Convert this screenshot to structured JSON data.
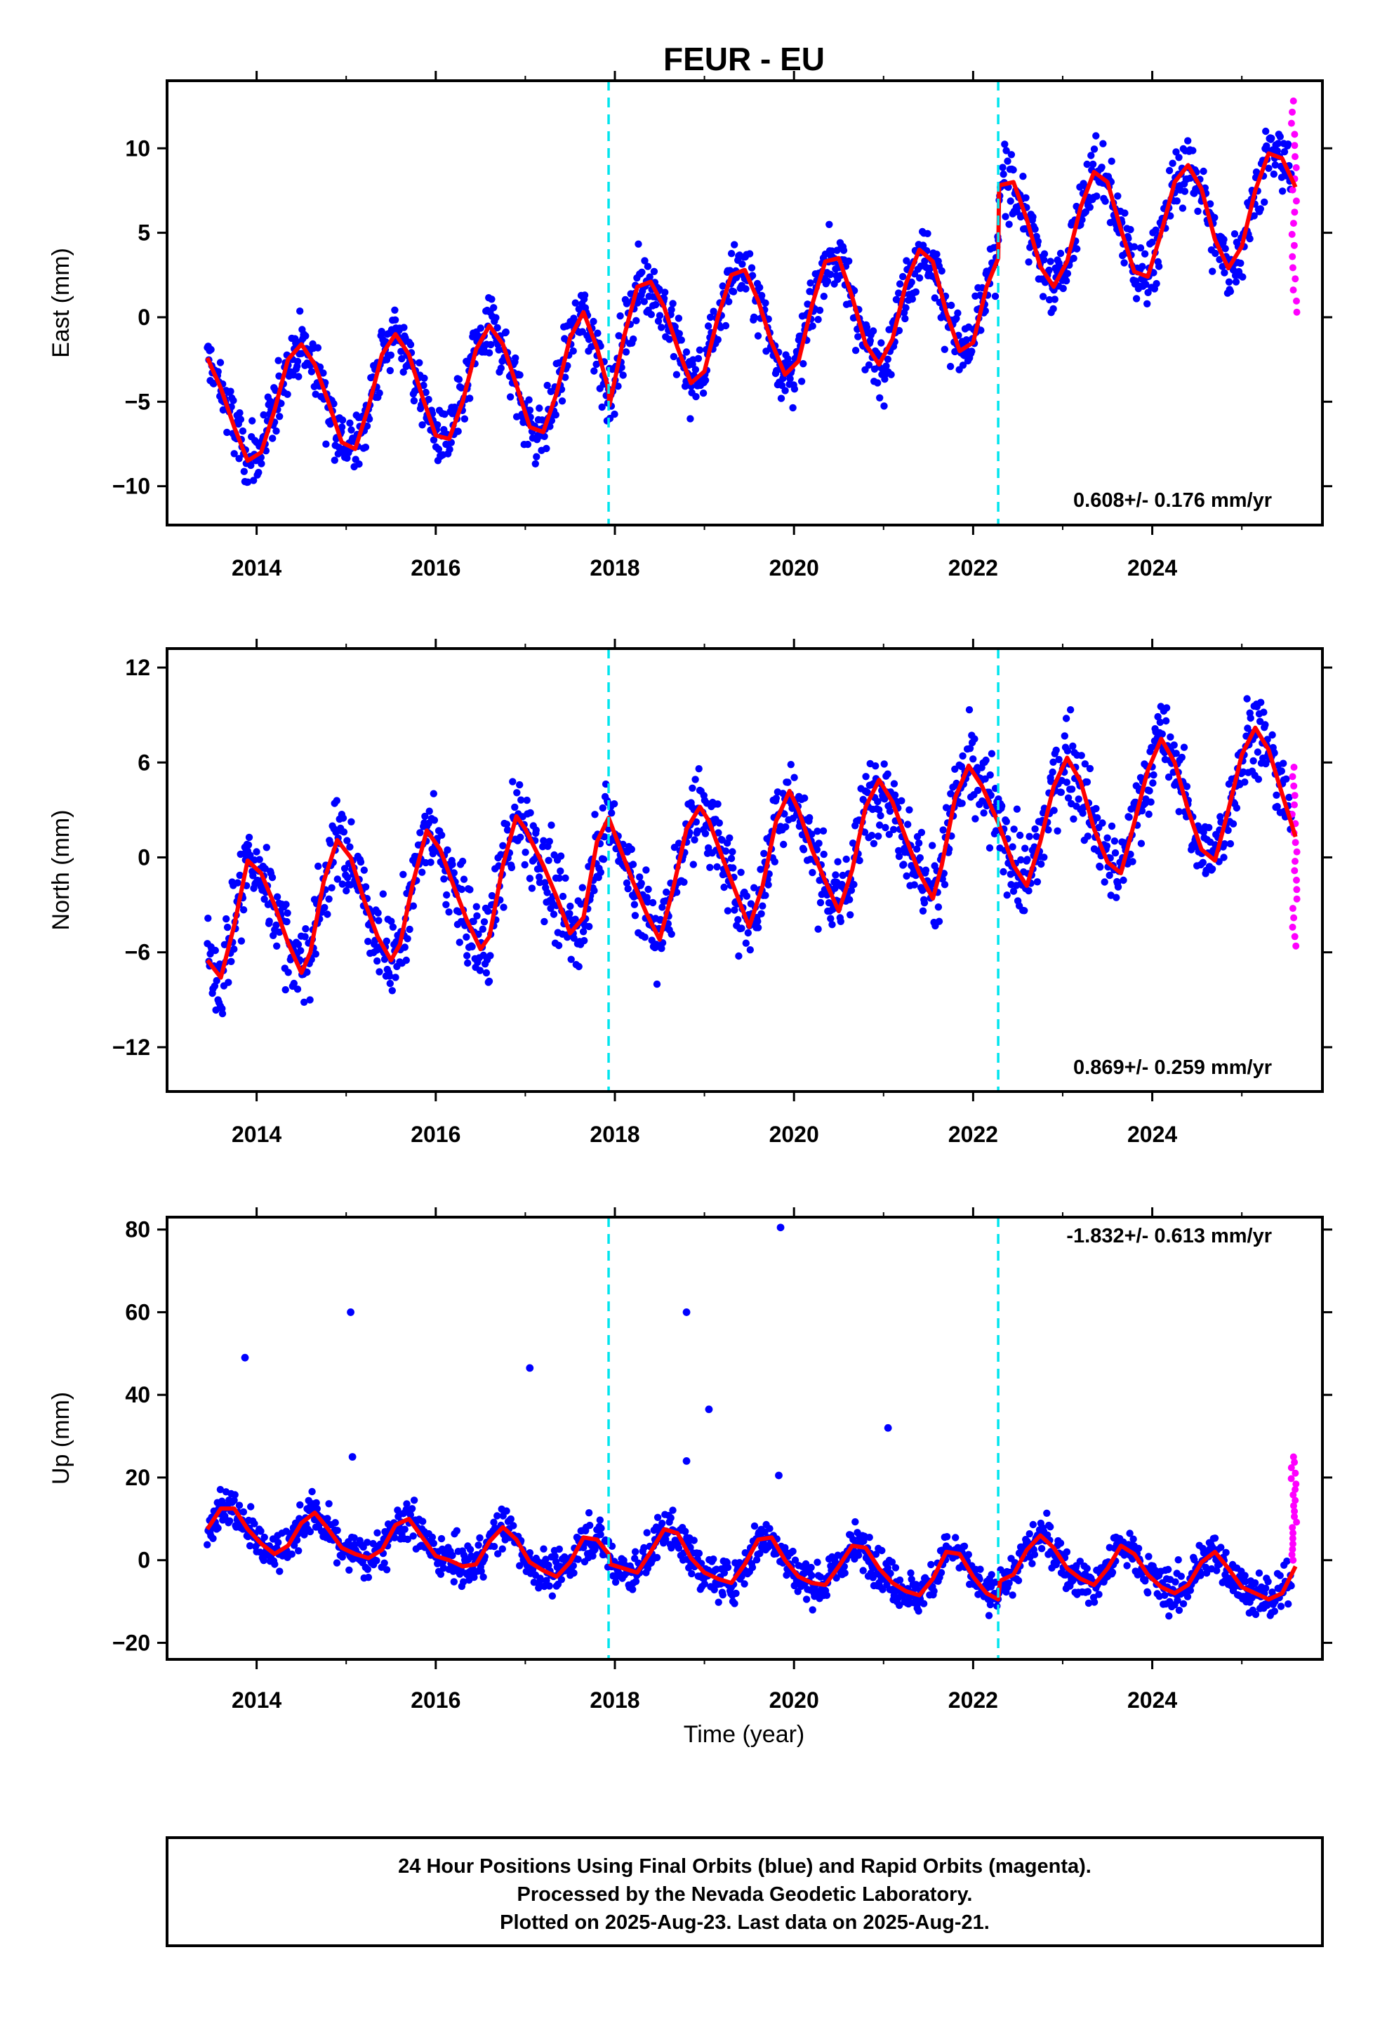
{
  "figure": {
    "title": "FEUR - EU",
    "xlabel": "Time (year)",
    "footer": [
      "24 Hour Positions Using Final Orbits (blue) and Rapid Orbits (magenta).",
      "Processed by the Nevada Geodetic Laboratory.",
      "Plotted on 2025-Aug-23. Last data on 2025-Aug-21."
    ],
    "colors": {
      "final_orbits": "#0000ff",
      "rapid_orbits": "#ff00ff",
      "model_fit": "#ff0000",
      "equipment_change": "#00e5ee"
    }
  },
  "chart_data": [
    {
      "type": "scatter",
      "panel": "east",
      "ylabel": "East (mm)",
      "xlim": [
        2013.0,
        2025.9
      ],
      "ylim": [
        -12.3,
        14
      ],
      "xticks": [
        "2014",
        "2016",
        "2018",
        "2020",
        "2022",
        "2024"
      ],
      "yticks": [
        "10",
        "5",
        "0",
        "−5",
        "−10"
      ],
      "ytick_values": [
        10,
        5,
        0,
        -5,
        -10
      ],
      "vertical_lines_x": [
        2017.93,
        2022.28
      ],
      "rate_label": "0.608+/- 0.176 mm/yr",
      "series": [
        {
          "name": "Final Orbits",
          "color": "#0000ff",
          "description_points": "daily positions from 2013.45 to 2025.55, scatter about the model"
        },
        {
          "name": "Rapid Orbits",
          "color": "#ff00ff",
          "x_range": [
            2025.55,
            2025.62
          ],
          "y_range": [
            0.3,
            12.8
          ]
        },
        {
          "name": "Model fit",
          "color": "#ff0000",
          "x": [
            2013.45,
            2013.6,
            2013.75,
            2013.9,
            2014.05,
            2014.2,
            2014.35,
            2014.5,
            2014.65,
            2014.8,
            2014.95,
            2015.1,
            2015.25,
            2015.4,
            2015.55,
            2015.7,
            2015.85,
            2016.0,
            2016.15,
            2016.3,
            2016.45,
            2016.6,
            2016.75,
            2016.9,
            2017.05,
            2017.2,
            2017.35,
            2017.5,
            2017.65,
            2017.8,
            2017.93,
            2017.94,
            2018.1,
            2018.25,
            2018.4,
            2018.55,
            2018.7,
            2018.85,
            2019.0,
            2019.15,
            2019.3,
            2019.45,
            2019.6,
            2019.75,
            2019.9,
            2020.05,
            2020.2,
            2020.35,
            2020.5,
            2020.65,
            2020.8,
            2020.95,
            2021.1,
            2021.25,
            2021.4,
            2021.55,
            2021.7,
            2021.85,
            2022.0,
            2022.15,
            2022.28,
            2022.29,
            2022.45,
            2022.6,
            2022.75,
            2022.9,
            2023.05,
            2023.2,
            2023.35,
            2023.5,
            2023.65,
            2023.8,
            2023.95,
            2024.1,
            2024.25,
            2024.4,
            2024.55,
            2024.7,
            2024.85,
            2025.0,
            2025.15,
            2025.3,
            2025.45,
            2025.6
          ],
          "y": [
            -2.4,
            -4.2,
            -6.5,
            -8.5,
            -8.0,
            -5.5,
            -2.5,
            -1.6,
            -2.8,
            -5.0,
            -7.4,
            -7.8,
            -5.3,
            -2.2,
            -1.0,
            -2.2,
            -4.7,
            -7.0,
            -7.2,
            -5.0,
            -1.9,
            -0.5,
            -1.6,
            -4.0,
            -6.5,
            -6.8,
            -4.5,
            -1.2,
            0.3,
            -1.8,
            -4.3,
            -5.2,
            -1.2,
            1.8,
            2.1,
            0.6,
            -1.8,
            -3.9,
            -3.2,
            0.0,
            2.5,
            2.8,
            1.0,
            -1.5,
            -3.4,
            -2.6,
            0.7,
            3.3,
            3.5,
            1.2,
            -1.6,
            -2.8,
            -1.3,
            2.0,
            4.0,
            3.3,
            0.3,
            -2.0,
            -1.5,
            1.8,
            3.5,
            7.8,
            8.0,
            5.8,
            3.0,
            1.8,
            3.3,
            6.5,
            8.6,
            8.0,
            5.2,
            2.7,
            2.4,
            5.0,
            8.0,
            9.0,
            7.6,
            4.6,
            2.9,
            4.2,
            7.5,
            9.7,
            9.4,
            7.7
          ]
        }
      ]
    },
    {
      "type": "scatter",
      "panel": "north",
      "ylabel": "North (mm)",
      "xlim": [
        2013.0,
        2025.9
      ],
      "ylim": [
        -14.8,
        13.2
      ],
      "xticks": [
        "2014",
        "2016",
        "2018",
        "2020",
        "2022",
        "2024"
      ],
      "yticks": [
        "12",
        "6",
        "0",
        "−6",
        "−12"
      ],
      "ytick_values": [
        12,
        6,
        0,
        -6,
        -12
      ],
      "vertical_lines_x": [
        2017.93,
        2022.28
      ],
      "rate_label": "0.869+/- 0.259 mm/yr",
      "series": [
        {
          "name": "Final Orbits",
          "color": "#0000ff",
          "description_points": "daily positions from 2013.45 to 2025.55, scatter about the model"
        },
        {
          "name": "Rapid Orbits",
          "color": "#ff00ff",
          "x_range": [
            2025.55,
            2025.62
          ],
          "y_range": [
            -5.6,
            5.7
          ]
        },
        {
          "name": "Model fit",
          "color": "#ff0000",
          "x": [
            2013.45,
            2013.6,
            2013.75,
            2013.9,
            2014.05,
            2014.2,
            2014.35,
            2014.5,
            2014.6,
            2014.75,
            2014.9,
            2015.05,
            2015.2,
            2015.35,
            2015.5,
            2015.6,
            2015.75,
            2015.9,
            2016.05,
            2016.2,
            2016.35,
            2016.5,
            2016.6,
            2016.75,
            2016.9,
            2017.0,
            2017.2,
            2017.35,
            2017.5,
            2017.65,
            2017.8,
            2017.93,
            2018.05,
            2018.2,
            2018.35,
            2018.5,
            2018.65,
            2018.8,
            2018.95,
            2019.05,
            2019.2,
            2019.35,
            2019.5,
            2019.65,
            2019.8,
            2019.95,
            2020.05,
            2020.2,
            2020.35,
            2020.5,
            2020.65,
            2020.8,
            2020.95,
            2021.1,
            2021.25,
            2021.4,
            2021.55,
            2021.65,
            2021.8,
            2021.95,
            2022.1,
            2022.28,
            2022.45,
            2022.6,
            2022.75,
            2022.9,
            2023.05,
            2023.2,
            2023.35,
            2023.5,
            2023.65,
            2023.8,
            2023.95,
            2024.1,
            2024.25,
            2024.4,
            2024.55,
            2024.7,
            2024.85,
            2025.0,
            2025.15,
            2025.3,
            2025.45,
            2025.6
          ],
          "y": [
            -6.5,
            -7.6,
            -4.3,
            -0.2,
            -1.0,
            -3.0,
            -5.4,
            -7.3,
            -6.0,
            -1.5,
            1.1,
            0.0,
            -2.7,
            -5.0,
            -6.5,
            -5.5,
            -1.5,
            1.7,
            0.5,
            -1.8,
            -4.0,
            -5.8,
            -5.0,
            -0.5,
            2.6,
            1.8,
            -0.5,
            -2.5,
            -4.8,
            -3.8,
            1.0,
            2.5,
            0.7,
            -1.5,
            -3.5,
            -5.2,
            -2.0,
            1.8,
            3.2,
            2.3,
            0.0,
            -2.2,
            -4.4,
            -1.8,
            2.3,
            4.2,
            3.0,
            0.5,
            -1.5,
            -3.4,
            -0.8,
            3.2,
            4.9,
            3.5,
            1.2,
            -1.0,
            -2.6,
            -0.5,
            3.8,
            5.8,
            4.5,
            2.2,
            -0.5,
            -1.8,
            1.0,
            4.5,
            6.3,
            4.8,
            1.8,
            -0.3,
            -1.0,
            2.2,
            5.5,
            7.5,
            6.0,
            3.0,
            0.5,
            -0.2,
            3.0,
            6.5,
            8.2,
            6.8,
            4.0,
            1.3
          ]
        }
      ]
    },
    {
      "type": "scatter",
      "panel": "up",
      "ylabel": "Up (mm)",
      "xlim": [
        2013.0,
        2025.9
      ],
      "ylim": [
        -24,
        83
      ],
      "xticks": [
        "2014",
        "2016",
        "2018",
        "2020",
        "2022",
        "2024"
      ],
      "yticks": [
        "80",
        "60",
        "40",
        "20",
        "0",
        "−20"
      ],
      "ytick_values": [
        80,
        60,
        40,
        20,
        0,
        -20
      ],
      "vertical_lines_x": [
        2017.93,
        2022.28
      ],
      "rate_label": "-1.832+/- 0.613 mm/yr",
      "outliers": [
        {
          "x": 2013.87,
          "y": 49
        },
        {
          "x": 2015.05,
          "y": 60
        },
        {
          "x": 2015.07,
          "y": 25
        },
        {
          "x": 2017.05,
          "y": 46.5
        },
        {
          "x": 2018.8,
          "y": 60
        },
        {
          "x": 2018.8,
          "y": 24
        },
        {
          "x": 2019.05,
          "y": 36.5
        },
        {
          "x": 2019.85,
          "y": 80.5
        },
        {
          "x": 2019.83,
          "y": 20.5
        },
        {
          "x": 2021.05,
          "y": 32
        }
      ],
      "series": [
        {
          "name": "Final Orbits",
          "color": "#0000ff",
          "description_points": "daily positions from 2013.45 to 2025.55, scatter about the model"
        },
        {
          "name": "Rapid Orbits",
          "color": "#ff00ff",
          "x_range": [
            2025.55,
            2025.62
          ],
          "y_range": [
            0,
            25
          ]
        },
        {
          "name": "Model fit",
          "color": "#ff0000",
          "x": [
            2013.45,
            2013.6,
            2013.75,
            2013.9,
            2014.05,
            2014.2,
            2014.35,
            2014.5,
            2014.65,
            2014.8,
            2014.95,
            2015.1,
            2015.25,
            2015.4,
            2015.55,
            2015.7,
            2015.85,
            2016.0,
            2016.15,
            2016.3,
            2016.45,
            2016.6,
            2016.75,
            2016.9,
            2017.05,
            2017.2,
            2017.35,
            2017.5,
            2017.65,
            2017.8,
            2017.93,
            2017.95,
            2018.1,
            2018.25,
            2018.4,
            2018.55,
            2018.7,
            2018.85,
            2019.0,
            2019.15,
            2019.3,
            2019.45,
            2019.6,
            2019.75,
            2019.9,
            2020.05,
            2020.2,
            2020.35,
            2020.5,
            2020.65,
            2020.8,
            2020.95,
            2021.1,
            2021.25,
            2021.4,
            2021.55,
            2021.7,
            2021.85,
            2022.0,
            2022.15,
            2022.28,
            2022.3,
            2022.45,
            2022.6,
            2022.75,
            2022.9,
            2023.05,
            2023.2,
            2023.35,
            2023.5,
            2023.65,
            2023.8,
            2023.95,
            2024.1,
            2024.25,
            2024.4,
            2024.55,
            2024.7,
            2024.85,
            2025.0,
            2025.15,
            2025.3,
            2025.45,
            2025.6
          ],
          "y": [
            7.5,
            12.5,
            12.5,
            7.5,
            4.0,
            1.5,
            3.5,
            9.0,
            11.5,
            7.5,
            3.0,
            1.5,
            0.5,
            2.5,
            8.5,
            10.0,
            5.5,
            1.0,
            0.0,
            -1.5,
            -1.0,
            4.5,
            8.0,
            5.0,
            -0.5,
            -2.5,
            -4.0,
            -0.5,
            5.5,
            5.0,
            1.5,
            -1.0,
            -2.0,
            -3.0,
            2.0,
            7.5,
            6.5,
            0.5,
            -3.0,
            -4.5,
            -5.5,
            -1.0,
            5.0,
            5.5,
            0.0,
            -4.0,
            -5.5,
            -6.0,
            -1.5,
            3.5,
            3.0,
            -2.0,
            -5.5,
            -7.5,
            -8.5,
            -4.5,
            2.0,
            1.5,
            -4.0,
            -8.0,
            -9.5,
            -5.0,
            -3.5,
            2.5,
            6.0,
            3.0,
            -2.0,
            -4.5,
            -6.0,
            -2.0,
            3.5,
            1.5,
            -3.5,
            -6.5,
            -8.0,
            -6.0,
            -0.5,
            2.0,
            -2.0,
            -6.5,
            -8.0,
            -9.5,
            -8.0,
            -1.5
          ]
        }
      ]
    }
  ]
}
